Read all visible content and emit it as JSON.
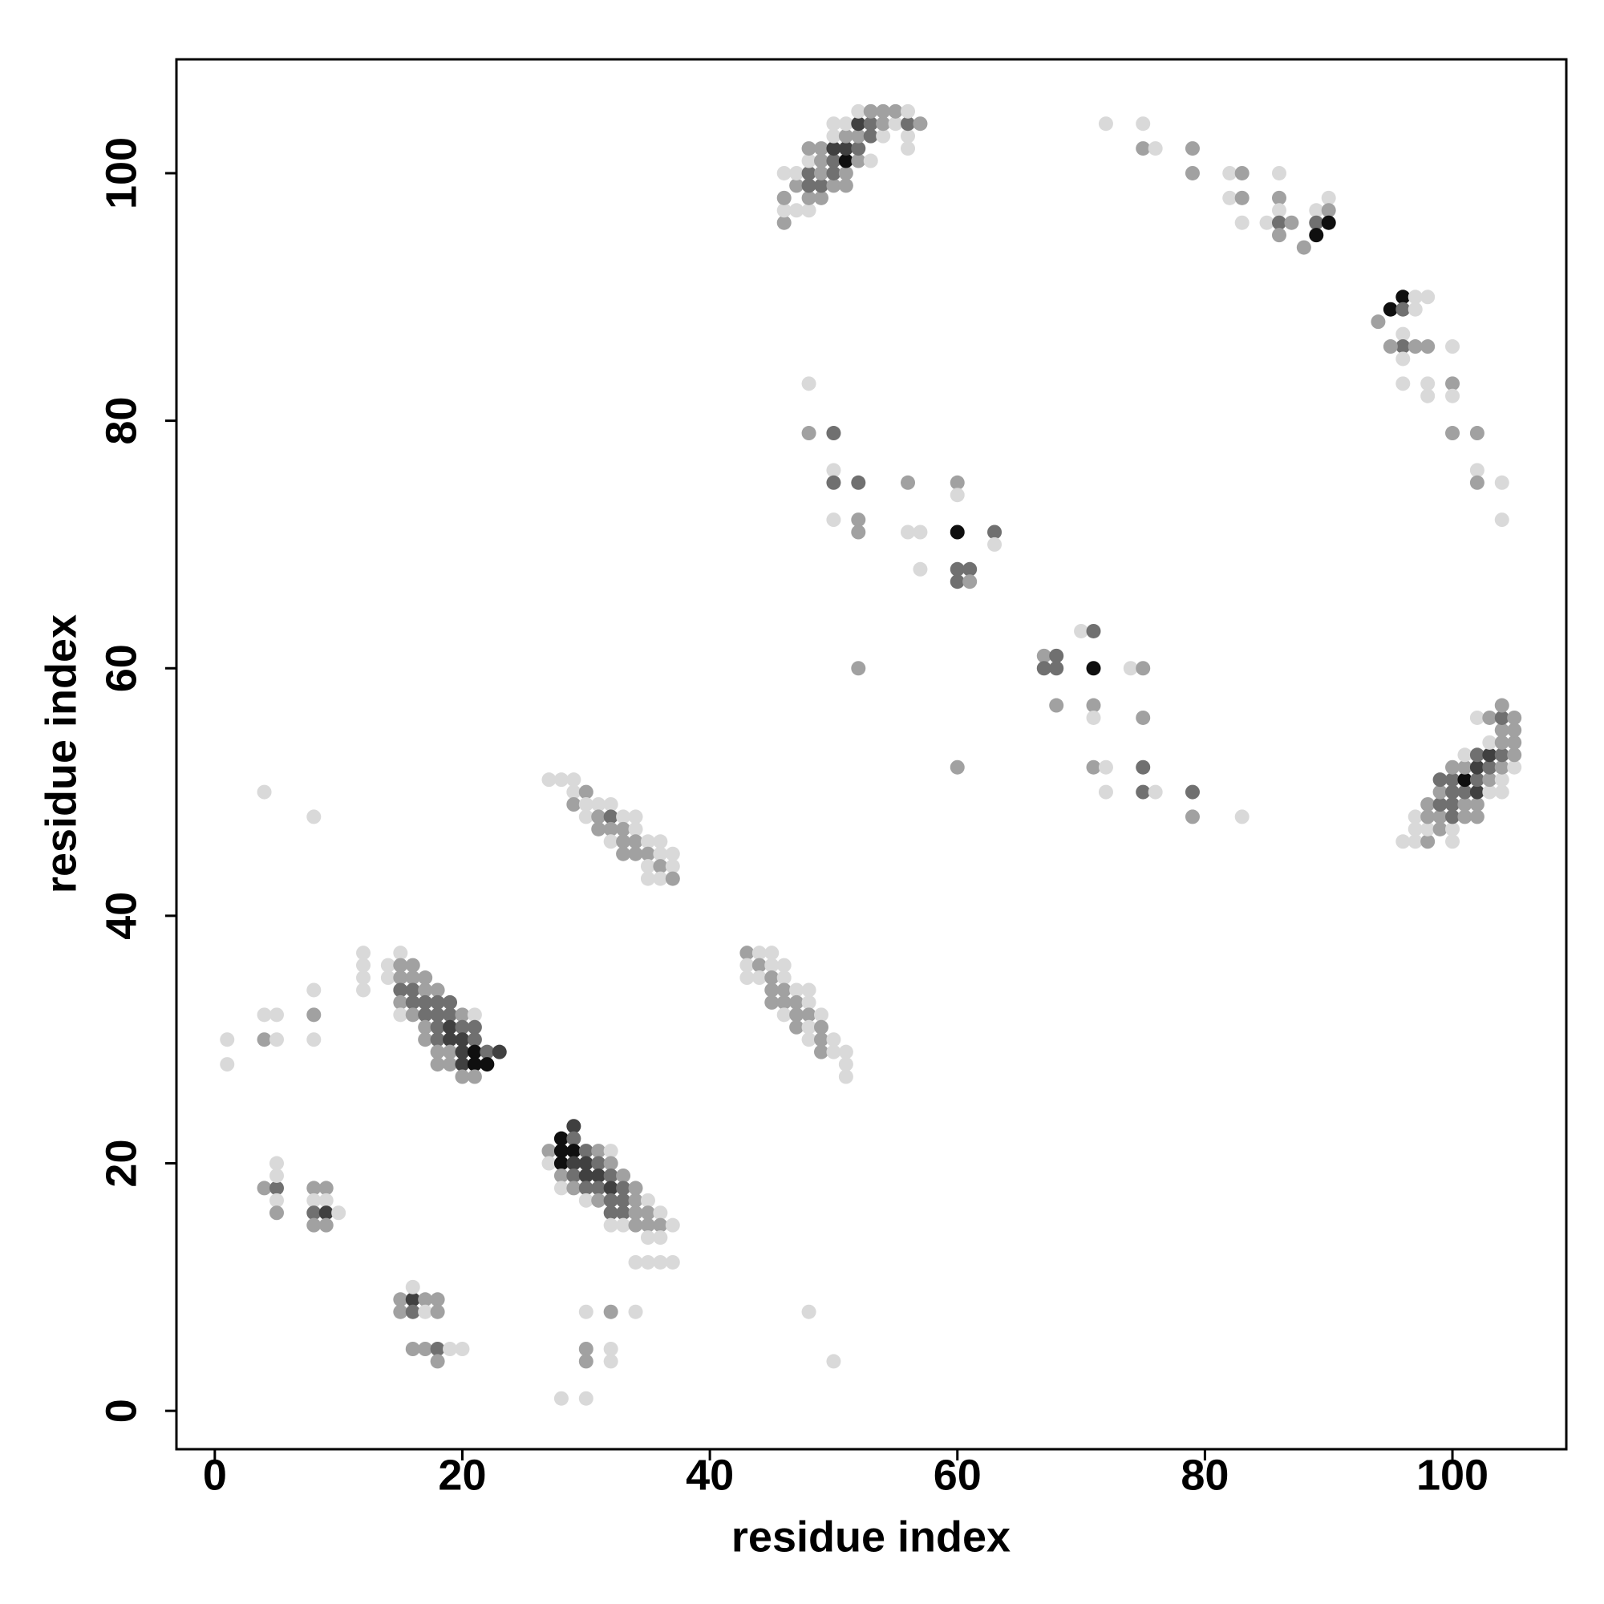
{
  "chart_data": {
    "type": "scatter",
    "xlabel": "residue index",
    "ylabel": "residue index",
    "x": [
      1,
      1,
      4,
      5,
      4,
      5,
      4,
      8,
      8,
      8,
      8,
      12,
      12,
      12,
      12,
      14,
      14,
      15,
      15,
      15,
      15,
      15,
      15,
      16,
      16,
      16,
      16,
      16,
      17,
      17,
      17,
      17,
      17,
      17,
      18,
      18,
      18,
      18,
      18,
      18,
      18,
      19,
      19,
      19,
      19,
      19,
      19,
      20,
      20,
      20,
      20,
      20,
      20,
      21,
      21,
      21,
      21,
      21,
      21,
      22,
      22,
      23,
      4,
      5,
      5,
      5,
      5,
      5,
      8,
      9,
      8,
      9,
      8,
      9,
      10,
      8,
      9,
      15,
      16,
      17,
      18,
      16,
      15,
      16,
      17,
      18,
      16,
      17,
      18,
      19,
      20,
      18,
      29,
      28,
      29,
      27,
      28,
      29,
      30,
      31,
      32,
      27,
      28,
      29,
      30,
      31,
      32,
      28,
      29,
      30,
      31,
      32,
      33,
      28,
      29,
      30,
      31,
      32,
      33,
      34,
      30,
      31,
      32,
      33,
      34,
      35,
      32,
      33,
      34,
      35,
      36,
      32,
      33,
      34,
      35,
      36,
      37,
      35,
      36,
      34,
      35,
      36,
      37,
      30,
      32,
      34,
      30,
      32,
      30,
      32,
      28,
      30,
      48,
      50,
      27,
      28,
      29,
      29,
      30,
      29,
      30,
      31,
      32,
      30,
      31,
      32,
      33,
      34,
      31,
      32,
      33,
      34,
      32,
      33,
      34,
      35,
      36,
      33,
      34,
      35,
      36,
      37,
      35,
      36,
      37,
      35,
      36,
      37,
      43,
      44,
      45,
      43,
      44,
      45,
      46,
      43,
      44,
      45,
      46,
      45,
      46,
      47,
      48,
      45,
      46,
      47,
      48,
      46,
      47,
      48,
      49,
      47,
      48,
      49,
      48,
      49,
      50,
      49,
      50,
      51,
      51,
      51,
      46,
      46,
      46,
      46,
      47,
      47,
      47,
      48,
      48,
      48,
      48,
      48,
      48,
      49,
      49,
      49,
      49,
      49,
      50,
      50,
      50,
      50,
      50,
      50,
      51,
      51,
      51,
      51,
      51,
      51,
      52,
      52,
      52,
      52,
      52,
      53,
      53,
      53,
      53,
      54,
      54,
      54,
      55,
      55,
      56,
      56,
      56,
      56,
      57,
      72,
      75,
      75,
      76,
      79,
      79,
      82,
      83,
      82,
      83,
      83,
      85,
      86,
      86,
      86,
      86,
      86,
      87,
      88,
      89,
      89,
      89,
      90,
      90,
      90,
      94,
      95,
      96,
      96,
      97,
      98,
      97,
      96,
      96,
      95,
      97,
      98,
      96,
      96,
      98,
      98,
      100,
      100,
      100,
      100,
      102,
      102,
      102,
      104,
      104,
      48,
      48,
      50,
      50,
      50,
      52,
      56,
      60,
      60,
      50,
      52,
      52,
      56,
      57,
      60,
      63,
      63,
      57,
      60,
      61,
      60,
      61,
      52,
      60,
      67,
      68,
      67,
      68,
      70,
      71,
      71,
      74,
      75,
      68,
      71,
      71,
      75,
      71,
      72,
      75,
      72,
      75,
      76,
      79,
      79,
      83,
      96,
      97,
      98,
      100,
      97,
      98,
      99,
      100,
      97,
      98,
      99,
      100,
      101,
      102,
      98,
      99,
      100,
      101,
      102,
      99,
      100,
      101,
      102,
      103,
      104,
      99,
      100,
      101,
      102,
      103,
      104,
      100,
      101,
      102,
      103,
      104,
      105,
      101,
      102,
      103,
      104,
      105,
      103,
      104,
      105,
      104,
      105,
      102,
      103,
      104,
      105,
      104
    ],
    "y": [
      30,
      28,
      32,
      32,
      30,
      30,
      50,
      48,
      34,
      32,
      30,
      37,
      36,
      35,
      34,
      36,
      35,
      37,
      36,
      35,
      34,
      33,
      32,
      36,
      35,
      34,
      33,
      32,
      35,
      34,
      33,
      32,
      31,
      30,
      34,
      33,
      32,
      31,
      30,
      29,
      28,
      33,
      32,
      31,
      30,
      29,
      28,
      32,
      31,
      30,
      29,
      28,
      27,
      32,
      31,
      30,
      29,
      28,
      27,
      29,
      28,
      29,
      18,
      18,
      20,
      19,
      17,
      16,
      18,
      18,
      17,
      17,
      16,
      16,
      16,
      15,
      15,
      9,
      9,
      9,
      9,
      10,
      8,
      8,
      8,
      8,
      5,
      5,
      5,
      5,
      5,
      4,
      23,
      22,
      22,
      21,
      21,
      21,
      21,
      21,
      21,
      20,
      20,
      20,
      20,
      20,
      20,
      19,
      19,
      19,
      19,
      19,
      19,
      18,
      18,
      18,
      18,
      18,
      18,
      18,
      17,
      17,
      17,
      17,
      17,
      17,
      16,
      16,
      16,
      16,
      16,
      15,
      15,
      15,
      15,
      15,
      15,
      14,
      14,
      12,
      12,
      12,
      12,
      8,
      8,
      8,
      5,
      5,
      4,
      4,
      1,
      1,
      8,
      4,
      51,
      51,
      51,
      50,
      50,
      49,
      49,
      49,
      49,
      48,
      48,
      48,
      48,
      48,
      47,
      47,
      47,
      47,
      46,
      46,
      46,
      46,
      46,
      45,
      45,
      45,
      45,
      45,
      44,
      44,
      44,
      43,
      43,
      43,
      37,
      37,
      37,
      36,
      36,
      36,
      36,
      35,
      35,
      35,
      35,
      34,
      34,
      34,
      34,
      33,
      33,
      33,
      33,
      32,
      32,
      32,
      32,
      31,
      31,
      31,
      30,
      30,
      30,
      29,
      29,
      29,
      28,
      27,
      96,
      97,
      98,
      100,
      97,
      99,
      100,
      97,
      98,
      99,
      100,
      101,
      102,
      98,
      99,
      100,
      101,
      102,
      99,
      100,
      101,
      102,
      103,
      104,
      99,
      100,
      101,
      102,
      103,
      104,
      101,
      102,
      103,
      104,
      105,
      101,
      103,
      104,
      105,
      103,
      104,
      105,
      104,
      105,
      102,
      103,
      104,
      105,
      104,
      104,
      104,
      102,
      102,
      102,
      100,
      100,
      100,
      98,
      98,
      96,
      96,
      100,
      98,
      97,
      96,
      95,
      96,
      94,
      97,
      96,
      95,
      98,
      97,
      96,
      88,
      89,
      90,
      89,
      90,
      90,
      89,
      87,
      86,
      86,
      86,
      86,
      85,
      83,
      83,
      82,
      86,
      83,
      82,
      79,
      79,
      76,
      75,
      75,
      72,
      83,
      79,
      79,
      76,
      75,
      75,
      75,
      75,
      74,
      72,
      72,
      71,
      71,
      71,
      71,
      71,
      70,
      68,
      68,
      68,
      67,
      67,
      60,
      52,
      61,
      61,
      60,
      60,
      63,
      63,
      60,
      60,
      60,
      57,
      57,
      56,
      56,
      52,
      52,
      52,
      50,
      50,
      50,
      50,
      48,
      48,
      46,
      46,
      46,
      46,
      47,
      47,
      47,
      47,
      48,
      48,
      48,
      48,
      48,
      48,
      49,
      49,
      49,
      49,
      49,
      50,
      50,
      50,
      50,
      50,
      50,
      51,
      51,
      51,
      51,
      51,
      51,
      52,
      52,
      52,
      52,
      52,
      52,
      53,
      53,
      53,
      53,
      53,
      54,
      54,
      54,
      55,
      55,
      56,
      56,
      56,
      56,
      57
    ],
    "intensity": [
      0.15,
      0.15,
      0.15,
      0.15,
      0.37,
      0.15,
      0.15,
      0.15,
      0.15,
      0.37,
      0.15,
      0.15,
      0.15,
      0.15,
      0.15,
      0.15,
      0.15,
      0.15,
      0.37,
      0.37,
      0.56,
      0.37,
      0.15,
      0.37,
      0.37,
      0.56,
      0.56,
      0.37,
      0.37,
      0.37,
      0.56,
      0.56,
      0.37,
      0.37,
      0.37,
      0.56,
      0.56,
      0.56,
      0.56,
      0.37,
      0.37,
      0.56,
      0.56,
      0.75,
      0.75,
      0.37,
      0.37,
      0.37,
      0.56,
      0.75,
      0.75,
      0.75,
      0.37,
      0.15,
      0.56,
      0.56,
      0.94,
      0.94,
      0.37,
      0.56,
      0.94,
      0.75,
      0.37,
      0.56,
      0.15,
      0.15,
      0.15,
      0.37,
      0.37,
      0.37,
      0.15,
      0.15,
      0.56,
      0.75,
      0.15,
      0.37,
      0.37,
      0.37,
      0.75,
      0.37,
      0.37,
      0.15,
      0.37,
      0.56,
      0.15,
      0.37,
      0.37,
      0.37,
      0.56,
      0.15,
      0.15,
      0.37,
      0.75,
      0.94,
      0.56,
      0.37,
      0.94,
      0.94,
      0.56,
      0.37,
      0.15,
      0.15,
      0.94,
      0.75,
      0.75,
      0.56,
      0.37,
      0.37,
      0.56,
      0.75,
      0.75,
      0.56,
      0.37,
      0.15,
      0.37,
      0.56,
      0.56,
      0.75,
      0.56,
      0.37,
      0.15,
      0.37,
      0.56,
      0.56,
      0.37,
      0.15,
      0.56,
      0.56,
      0.37,
      0.37,
      0.15,
      0.15,
      0.15,
      0.37,
      0.37,
      0.37,
      0.15,
      0.15,
      0.15,
      0.15,
      0.15,
      0.15,
      0.15,
      0.15,
      0.37,
      0.15,
      0.37,
      0.15,
      0.37,
      0.15,
      0.15,
      0.15,
      0.15,
      0.15,
      0.15,
      0.15,
      0.15,
      0.15,
      0.37,
      0.37,
      0.15,
      0.15,
      0.15,
      0.15,
      0.37,
      0.56,
      0.15,
      0.15,
      0.37,
      0.37,
      0.37,
      0.15,
      0.15,
      0.37,
      0.37,
      0.15,
      0.15,
      0.37,
      0.37,
      0.37,
      0.15,
      0.15,
      0.15,
      0.37,
      0.15,
      0.15,
      0.15,
      0.37,
      0.37,
      0.15,
      0.15,
      0.15,
      0.37,
      0.15,
      0.15,
      0.15,
      0.15,
      0.37,
      0.15,
      0.37,
      0.37,
      0.15,
      0.15,
      0.37,
      0.37,
      0.37,
      0.15,
      0.15,
      0.37,
      0.37,
      0.15,
      0.37,
      0.15,
      0.37,
      0.15,
      0.37,
      0.15,
      0.37,
      0.15,
      0.15,
      0.15,
      0.15,
      0.37,
      0.15,
      0.37,
      0.15,
      0.15,
      0.37,
      0.15,
      0.15,
      0.37,
      0.56,
      0.56,
      0.15,
      0.37,
      0.37,
      0.56,
      0.37,
      0.37,
      0.37,
      0.37,
      0.56,
      0.56,
      0.75,
      0.15,
      0.15,
      0.37,
      0.37,
      0.94,
      0.75,
      0.37,
      0.15,
      0.37,
      0.56,
      0.37,
      0.75,
      0.15,
      0.15,
      0.56,
      0.56,
      0.37,
      0.15,
      0.37,
      0.37,
      0.15,
      0.37,
      0.15,
      0.15,
      0.56,
      0.15,
      0.37,
      0.15,
      0.15,
      0.37,
      0.15,
      0.37,
      0.37,
      0.15,
      0.37,
      0.15,
      0.37,
      0.15,
      0.15,
      0.15,
      0.37,
      0.15,
      0.56,
      0.37,
      0.37,
      0.37,
      0.15,
      0.56,
      0.94,
      0.15,
      0.37,
      0.94,
      0.37,
      0.94,
      0.94,
      0.56,
      0.15,
      0.15,
      0.15,
      0.15,
      0.56,
      0.37,
      0.37,
      0.37,
      0.15,
      0.15,
      0.15,
      0.15,
      0.15,
      0.37,
      0.15,
      0.37,
      0.37,
      0.15,
      0.37,
      0.15,
      0.15,
      0.15,
      0.37,
      0.56,
      0.15,
      0.56,
      0.56,
      0.37,
      0.37,
      0.15,
      0.15,
      0.37,
      0.37,
      0.15,
      0.15,
      0.94,
      0.56,
      0.15,
      0.15,
      0.56,
      0.56,
      0.56,
      0.37,
      0.37,
      0.37,
      0.37,
      0.56,
      0.56,
      0.56,
      0.15,
      0.56,
      0.94,
      0.15,
      0.37,
      0.37,
      0.37,
      0.15,
      0.37,
      0.37,
      0.15,
      0.56,
      0.15,
      0.56,
      0.15,
      0.56,
      0.37,
      0.15,
      0.15,
      0.15,
      0.37,
      0.15,
      0.15,
      0.15,
      0.37,
      0.15,
      0.15,
      0.37,
      0.37,
      0.56,
      0.37,
      0.37,
      0.37,
      0.56,
      0.56,
      0.37,
      0.37,
      0.37,
      0.56,
      0.56,
      0.75,
      0.15,
      0.15,
      0.56,
      0.56,
      0.94,
      0.56,
      0.37,
      0.15,
      0.37,
      0.37,
      0.75,
      0.56,
      0.37,
      0.15,
      0.15,
      0.56,
      0.75,
      0.56,
      0.37,
      0.15,
      0.37,
      0.37,
      0.37,
      0.37,
      0.15,
      0.37,
      0.56,
      0.37,
      0.37
    ],
    "xlim": [
      -3.1,
      109.2
    ],
    "ylim": [
      -3.1,
      109.2
    ],
    "xticks": [
      0,
      20,
      40,
      60,
      80,
      100
    ],
    "yticks": [
      0,
      20,
      40,
      60,
      80,
      100
    ]
  }
}
